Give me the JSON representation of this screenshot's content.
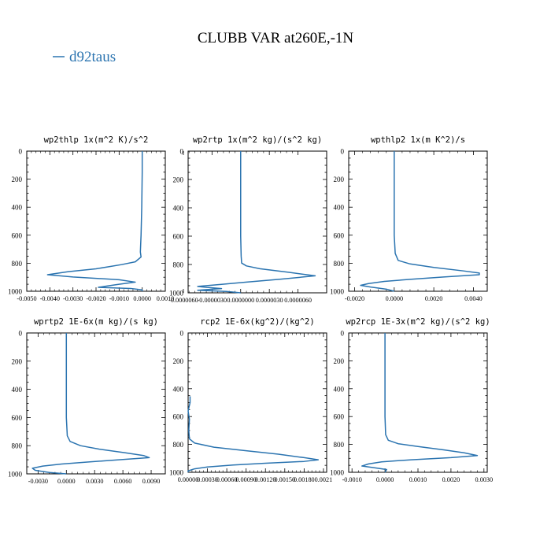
{
  "figure": {
    "title": "CLUBB VAR at260E,-1N",
    "legend": [
      {
        "label": "d92taus",
        "color": "#2b74b0"
      }
    ]
  },
  "chart_data": [
    {
      "type": "line",
      "title": "wp2thlp  1x(m^2 K)/s^2",
      "x_ticks": [
        "-0.0050",
        "-0.0040",
        "-0.0030",
        "-0.0020",
        "-0.0010",
        "0.0000",
        "0.0010"
      ],
      "y_ticks": [
        "0",
        "200",
        "400",
        "600",
        "800",
        "1000"
      ],
      "xlim": [
        -0.005,
        0.001
      ],
      "ylim": [
        1000,
        0
      ],
      "series": [
        {
          "color": "#2b74b0",
          "points": [
            [
              0.0,
              0
            ],
            [
              0.0,
              150
            ],
            [
              -2e-05,
              400
            ],
            [
              -5e-05,
              600
            ],
            [
              -8e-05,
              720
            ],
            [
              -5e-05,
              755
            ],
            [
              -0.0003,
              790
            ],
            [
              -0.0009,
              810
            ],
            [
              -0.002,
              840
            ],
            [
              -0.0032,
              860
            ],
            [
              -0.0041,
              882
            ],
            [
              -0.003,
              898
            ],
            [
              -0.001,
              918
            ],
            [
              -0.0003,
              935
            ],
            [
              -0.001,
              950
            ],
            [
              -0.0015,
              962
            ],
            [
              -0.0019,
              972
            ],
            [
              -0.0005,
              980
            ],
            [
              0.0,
              990
            ],
            [
              0.0,
              1000
            ]
          ]
        }
      ]
    },
    {
      "type": "line",
      "title": "wp2rtp  1x(m^2 kg)/(s^2 kg)",
      "x_ticks": [
        "-0.0000060",
        "-0.0000030",
        "0.0000000",
        "0.0000030",
        "0.0000060"
      ],
      "y_ticks": [
        "0",
        "200",
        "400",
        "600",
        "800",
        "1000"
      ],
      "xlim": [
        -5.5e-06,
        9e-06
      ],
      "ylim": [
        1000,
        0
      ],
      "series": [
        {
          "color": "#2b74b0",
          "points": [
            [
              0.0,
              0
            ],
            [
              0.0,
              200
            ],
            [
              0.0,
              400
            ],
            [
              0.0,
              600
            ],
            [
              5e-08,
              740
            ],
            [
              1e-07,
              790
            ],
            [
              6e-07,
              810
            ],
            [
              2e-06,
              830
            ],
            [
              5e-06,
              855
            ],
            [
              7.8e-06,
              880
            ],
            [
              4e-06,
              905
            ],
            [
              5e-07,
              925
            ],
            [
              -2e-06,
              940
            ],
            [
              -4.5e-06,
              955
            ],
            [
              -3.5e-06,
              962
            ],
            [
              -2e-06,
              970
            ],
            [
              -4.5e-06,
              982
            ],
            [
              -1.5e-06,
              990
            ],
            [
              0.0,
              1000
            ]
          ]
        }
      ]
    },
    {
      "type": "line",
      "title": "wpthlp2  1x(m K^2)/s",
      "x_ticks": [
        "-0.0020",
        "0.0000",
        "0.0020",
        "0.0040"
      ],
      "y_ticks": [
        "0",
        "200",
        "400",
        "600",
        "800",
        "1000"
      ],
      "xlim": [
        -0.0023,
        0.0047
      ],
      "ylim": [
        1000,
        0
      ],
      "series": [
        {
          "color": "#2b74b0",
          "points": [
            [
              0.0,
              0
            ],
            [
              0.0,
              200
            ],
            [
              0.0,
              400
            ],
            [
              0.0,
              600
            ],
            [
              5e-05,
              730
            ],
            [
              0.0002,
              780
            ],
            [
              0.0008,
              805
            ],
            [
              0.002,
              830
            ],
            [
              0.0035,
              855
            ],
            [
              0.0043,
              870
            ],
            [
              0.0043,
              882
            ],
            [
              0.0025,
              898
            ],
            [
              0.0008,
              915
            ],
            [
              -0.0005,
              930
            ],
            [
              -0.0013,
              945
            ],
            [
              -0.0017,
              958
            ],
            [
              -0.0012,
              970
            ],
            [
              -0.0004,
              985
            ],
            [
              0.0,
              1000
            ]
          ]
        }
      ]
    },
    {
      "type": "line",
      "title": "wprtp2  1E-6x(m kg)/(s kg)",
      "x_ticks": [
        "-0.0030",
        "0.0000",
        "0.0030",
        "0.0060",
        "0.0090"
      ],
      "y_ticks": [
        "0",
        "200",
        "400",
        "600",
        "800",
        "1000"
      ],
      "xlim": [
        -0.0042,
        0.0105
      ],
      "ylim": [
        1000,
        0
      ],
      "series": [
        {
          "color": "#2b74b0",
          "points": [
            [
              0.0,
              0
            ],
            [
              0.0,
              200
            ],
            [
              0.0,
              400
            ],
            [
              0.0,
              600
            ],
            [
              0.0001,
              730
            ],
            [
              0.0004,
              770
            ],
            [
              0.0015,
              800
            ],
            [
              0.0035,
              825
            ],
            [
              0.0062,
              850
            ],
            [
              0.0082,
              870
            ],
            [
              0.0088,
              885
            ],
            [
              0.006,
              898
            ],
            [
              0.0025,
              915
            ],
            [
              -0.0005,
              930
            ],
            [
              -0.0025,
              945
            ],
            [
              -0.0036,
              960
            ],
            [
              -0.0033,
              975
            ],
            [
              -0.0018,
              990
            ],
            [
              0.0,
              1000
            ]
          ]
        }
      ]
    },
    {
      "type": "line",
      "title": "rcp2  1E-6x(kg^2)/(kg^2)",
      "x_ticks": [
        "0.00000",
        "0.00030",
        "0.00060",
        "0.00090",
        "0.00120",
        "0.00150",
        "0.00180",
        "0.0021"
      ],
      "y_ticks": [
        "0",
        "200",
        "400",
        "600",
        "800",
        "1000"
      ],
      "xlim": [
        0.0,
        0.00215
      ],
      "ylim": [
        1000,
        0
      ],
      "series": [
        {
          "color": "#2b74b0",
          "points": [
            [
              3e-05,
              455
            ],
            [
              3e-05,
              500
            ],
            [
              0.0,
              560
            ],
            [
              2e-05,
              620
            ],
            [
              1e-05,
              700
            ],
            [
              2e-05,
              760
            ],
            [
              0.0001,
              790
            ],
            [
              0.0004,
              820
            ],
            [
              0.0009,
              845
            ],
            [
              0.0014,
              870
            ],
            [
              0.0018,
              895
            ],
            [
              0.00202,
              910
            ],
            [
              0.0018,
              922
            ],
            [
              0.0012,
              935
            ],
            [
              0.0007,
              948
            ],
            [
              0.0003,
              962
            ],
            [
              0.0001,
              975
            ],
            [
              0.0,
              990
            ],
            [
              0.0,
              1000
            ]
          ]
        }
      ]
    },
    {
      "type": "line",
      "title": "wp2rcp  1E-3x(m^2 kg)/(s^2 kg)",
      "x_ticks": [
        "-0.0010",
        "0.0000",
        "0.0010",
        "0.0020",
        "0.0030"
      ],
      "y_ticks": [
        "0",
        "200",
        "400",
        "600",
        "800",
        "1000"
      ],
      "xlim": [
        -0.0011,
        0.0031
      ],
      "ylim": [
        1000,
        0
      ],
      "series": [
        {
          "color": "#2b74b0",
          "points": [
            [
              0.0,
              0
            ],
            [
              0.0,
              200
            ],
            [
              0.0,
              400
            ],
            [
              0.0,
              600
            ],
            [
              2e-05,
              730
            ],
            [
              0.0001,
              770
            ],
            [
              0.0004,
              795
            ],
            [
              0.001,
              815
            ],
            [
              0.0018,
              840
            ],
            [
              0.0024,
              860
            ],
            [
              0.0028,
              880
            ],
            [
              0.002,
              895
            ],
            [
              0.0008,
              910
            ],
            [
              -0.0001,
              925
            ],
            [
              -0.0005,
              940
            ],
            [
              -0.0007,
              955
            ],
            [
              -0.0003,
              968
            ],
            [
              5e-05,
              980
            ],
            [
              0.0,
              1000
            ]
          ]
        }
      ]
    }
  ]
}
